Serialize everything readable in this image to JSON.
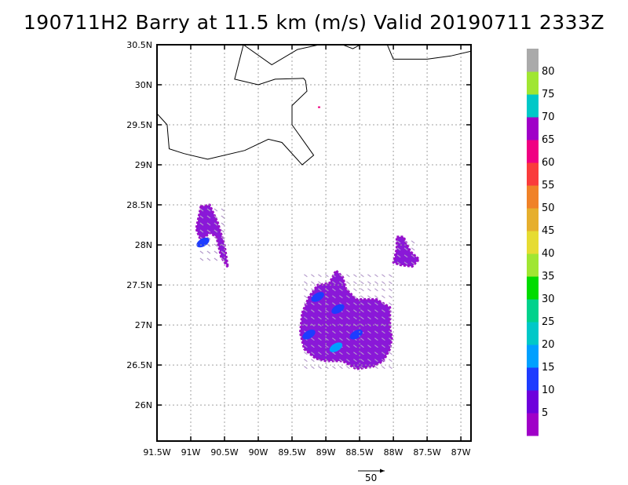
{
  "title": "190711H2 Barry at 11.5 km (m/s) Valid 20190711 2333Z",
  "chart_data": {
    "type": "heatmap",
    "title": "190711H2 Barry at 11.5 km (m/s) Valid 20190711 2333Z",
    "xlabel": "",
    "ylabel": "",
    "xlim": [
      -91.5,
      -86.85
    ],
    "ylim": [
      25.55,
      30.5
    ],
    "x_ticks": [
      -91.5,
      -91,
      -90.5,
      -90,
      -89.5,
      -89,
      -88.5,
      -88,
      -87.5,
      -87
    ],
    "x_tick_labels": [
      "91.5W",
      "91W",
      "90.5W",
      "90W",
      "89.5W",
      "89W",
      "88.5W",
      "88W",
      "87.5W",
      "87W"
    ],
    "y_ticks": [
      26,
      26.5,
      27,
      27.5,
      28,
      28.5,
      29,
      29.5,
      30,
      30.5
    ],
    "y_tick_labels": [
      "26N",
      "26.5N",
      "27N",
      "27.5N",
      "28N",
      "28.5N",
      "29N",
      "29.5N",
      "30N",
      "30.5N"
    ],
    "grid": true,
    "colorbar": {
      "labels": [
        "5",
        "10",
        "15",
        "20",
        "25",
        "30",
        "35",
        "40",
        "45",
        "50",
        "55",
        "60",
        "65",
        "70",
        "75",
        "80"
      ],
      "colors": [
        "#a000c8",
        "#6e00dc",
        "#1e3cff",
        "#00a0ff",
        "#00c8c8",
        "#00d28c",
        "#00dc00",
        "#a0e632",
        "#e6dc32",
        "#e6af2d",
        "#f08228",
        "#fa3c3c",
        "#f00082",
        "#a000c8",
        "#00c8c8",
        "#a0e632",
        "#aaaaaa"
      ]
    },
    "wind_vector_reference": {
      "value": 50,
      "label": "50"
    },
    "regions": [
      {
        "name": "",
        "dominant_speed": "5-10",
        "polygon": [
          [
            -90.85,
            28.48
          ],
          [
            -90.72,
            28.5
          ],
          [
            -90.6,
            28.28
          ],
          [
            -90.5,
            28.0
          ],
          [
            -90.45,
            27.72
          ],
          [
            -90.55,
            27.85
          ],
          [
            -90.62,
            28.1
          ],
          [
            -90.72,
            28.15
          ],
          [
            -90.85,
            28.05
          ],
          [
            -90.92,
            28.2
          ]
        ],
        "high_speed_patches": [
          {
            "center": [
              -90.82,
              28.03
            ],
            "speed": "10-15"
          }
        ]
      },
      {
        "name": "",
        "dominant_speed": "5-10",
        "polygon": [
          [
            -87.95,
            28.1
          ],
          [
            -87.85,
            28.1
          ],
          [
            -87.75,
            27.92
          ],
          [
            -87.62,
            27.82
          ],
          [
            -87.72,
            27.73
          ],
          [
            -87.9,
            27.75
          ],
          [
            -88.0,
            27.78
          ],
          [
            -87.95,
            27.95
          ]
        ],
        "high_speed_patches": []
      },
      {
        "name": "",
        "dominant_speed": "5-10",
        "polygon": [
          [
            -89.35,
            27.15
          ],
          [
            -89.25,
            27.35
          ],
          [
            -89.12,
            27.5
          ],
          [
            -88.95,
            27.52
          ],
          [
            -88.85,
            27.68
          ],
          [
            -88.75,
            27.6
          ],
          [
            -88.7,
            27.45
          ],
          [
            -88.55,
            27.32
          ],
          [
            -88.25,
            27.32
          ],
          [
            -88.05,
            27.22
          ],
          [
            -88.05,
            26.95
          ],
          [
            -88.02,
            26.85
          ],
          [
            -88.05,
            26.7
          ],
          [
            -88.15,
            26.55
          ],
          [
            -88.3,
            26.48
          ],
          [
            -88.55,
            26.45
          ],
          [
            -88.75,
            26.55
          ],
          [
            -89.0,
            26.55
          ],
          [
            -89.15,
            26.58
          ],
          [
            -89.32,
            26.7
          ],
          [
            -89.38,
            26.9
          ]
        ],
        "high_speed_patches": [
          {
            "center": [
              -89.12,
              27.35
            ],
            "speed": "10-15"
          },
          {
            "center": [
              -88.82,
              27.2
            ],
            "speed": "10-15"
          },
          {
            "center": [
              -89.25,
              26.88
            ],
            "speed": "10-15"
          },
          {
            "center": [
              -88.85,
              26.72
            ],
            "speed": "15-20"
          },
          {
            "center": [
              -88.55,
              26.88
            ],
            "speed": "10-15"
          }
        ]
      }
    ],
    "outlier_pixel": {
      "lon": -89.1,
      "lat": 29.72,
      "speed": "60-65"
    }
  }
}
